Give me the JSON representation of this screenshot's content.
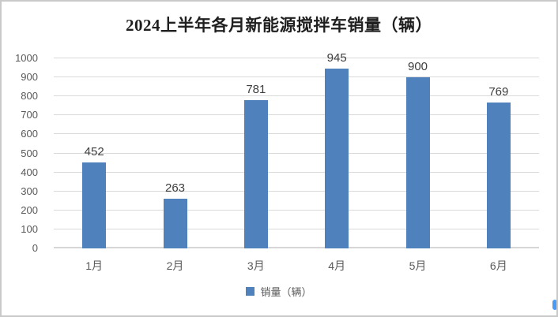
{
  "window": {
    "background": "#ffffff",
    "border_color": "#c9c9c9"
  },
  "chart_data": {
    "type": "bar",
    "title": "2024上半年各月新能源搅拌车销量（辆）",
    "categories": [
      "1月",
      "2月",
      "3月",
      "4月",
      "5月",
      "6月"
    ],
    "series": [
      {
        "name": "销量（辆）",
        "values": [
          452,
          263,
          781,
          945,
          900,
          769
        ]
      }
    ],
    "xlabel": "",
    "ylabel": "",
    "ylim": [
      0,
      1000
    ],
    "yticks": [
      0,
      100,
      200,
      300,
      400,
      500,
      600,
      700,
      800,
      900,
      1000
    ],
    "grid": true,
    "data_labels": true,
    "legend_position": "bottom",
    "bar_color": "#4f81bd",
    "gridline_color": "#d9d9d9",
    "baseline_color": "#d6d6d6",
    "title_color": "#1f1f1f",
    "tick_label_color": "#595959",
    "data_label_color": "#3d3d3d"
  }
}
